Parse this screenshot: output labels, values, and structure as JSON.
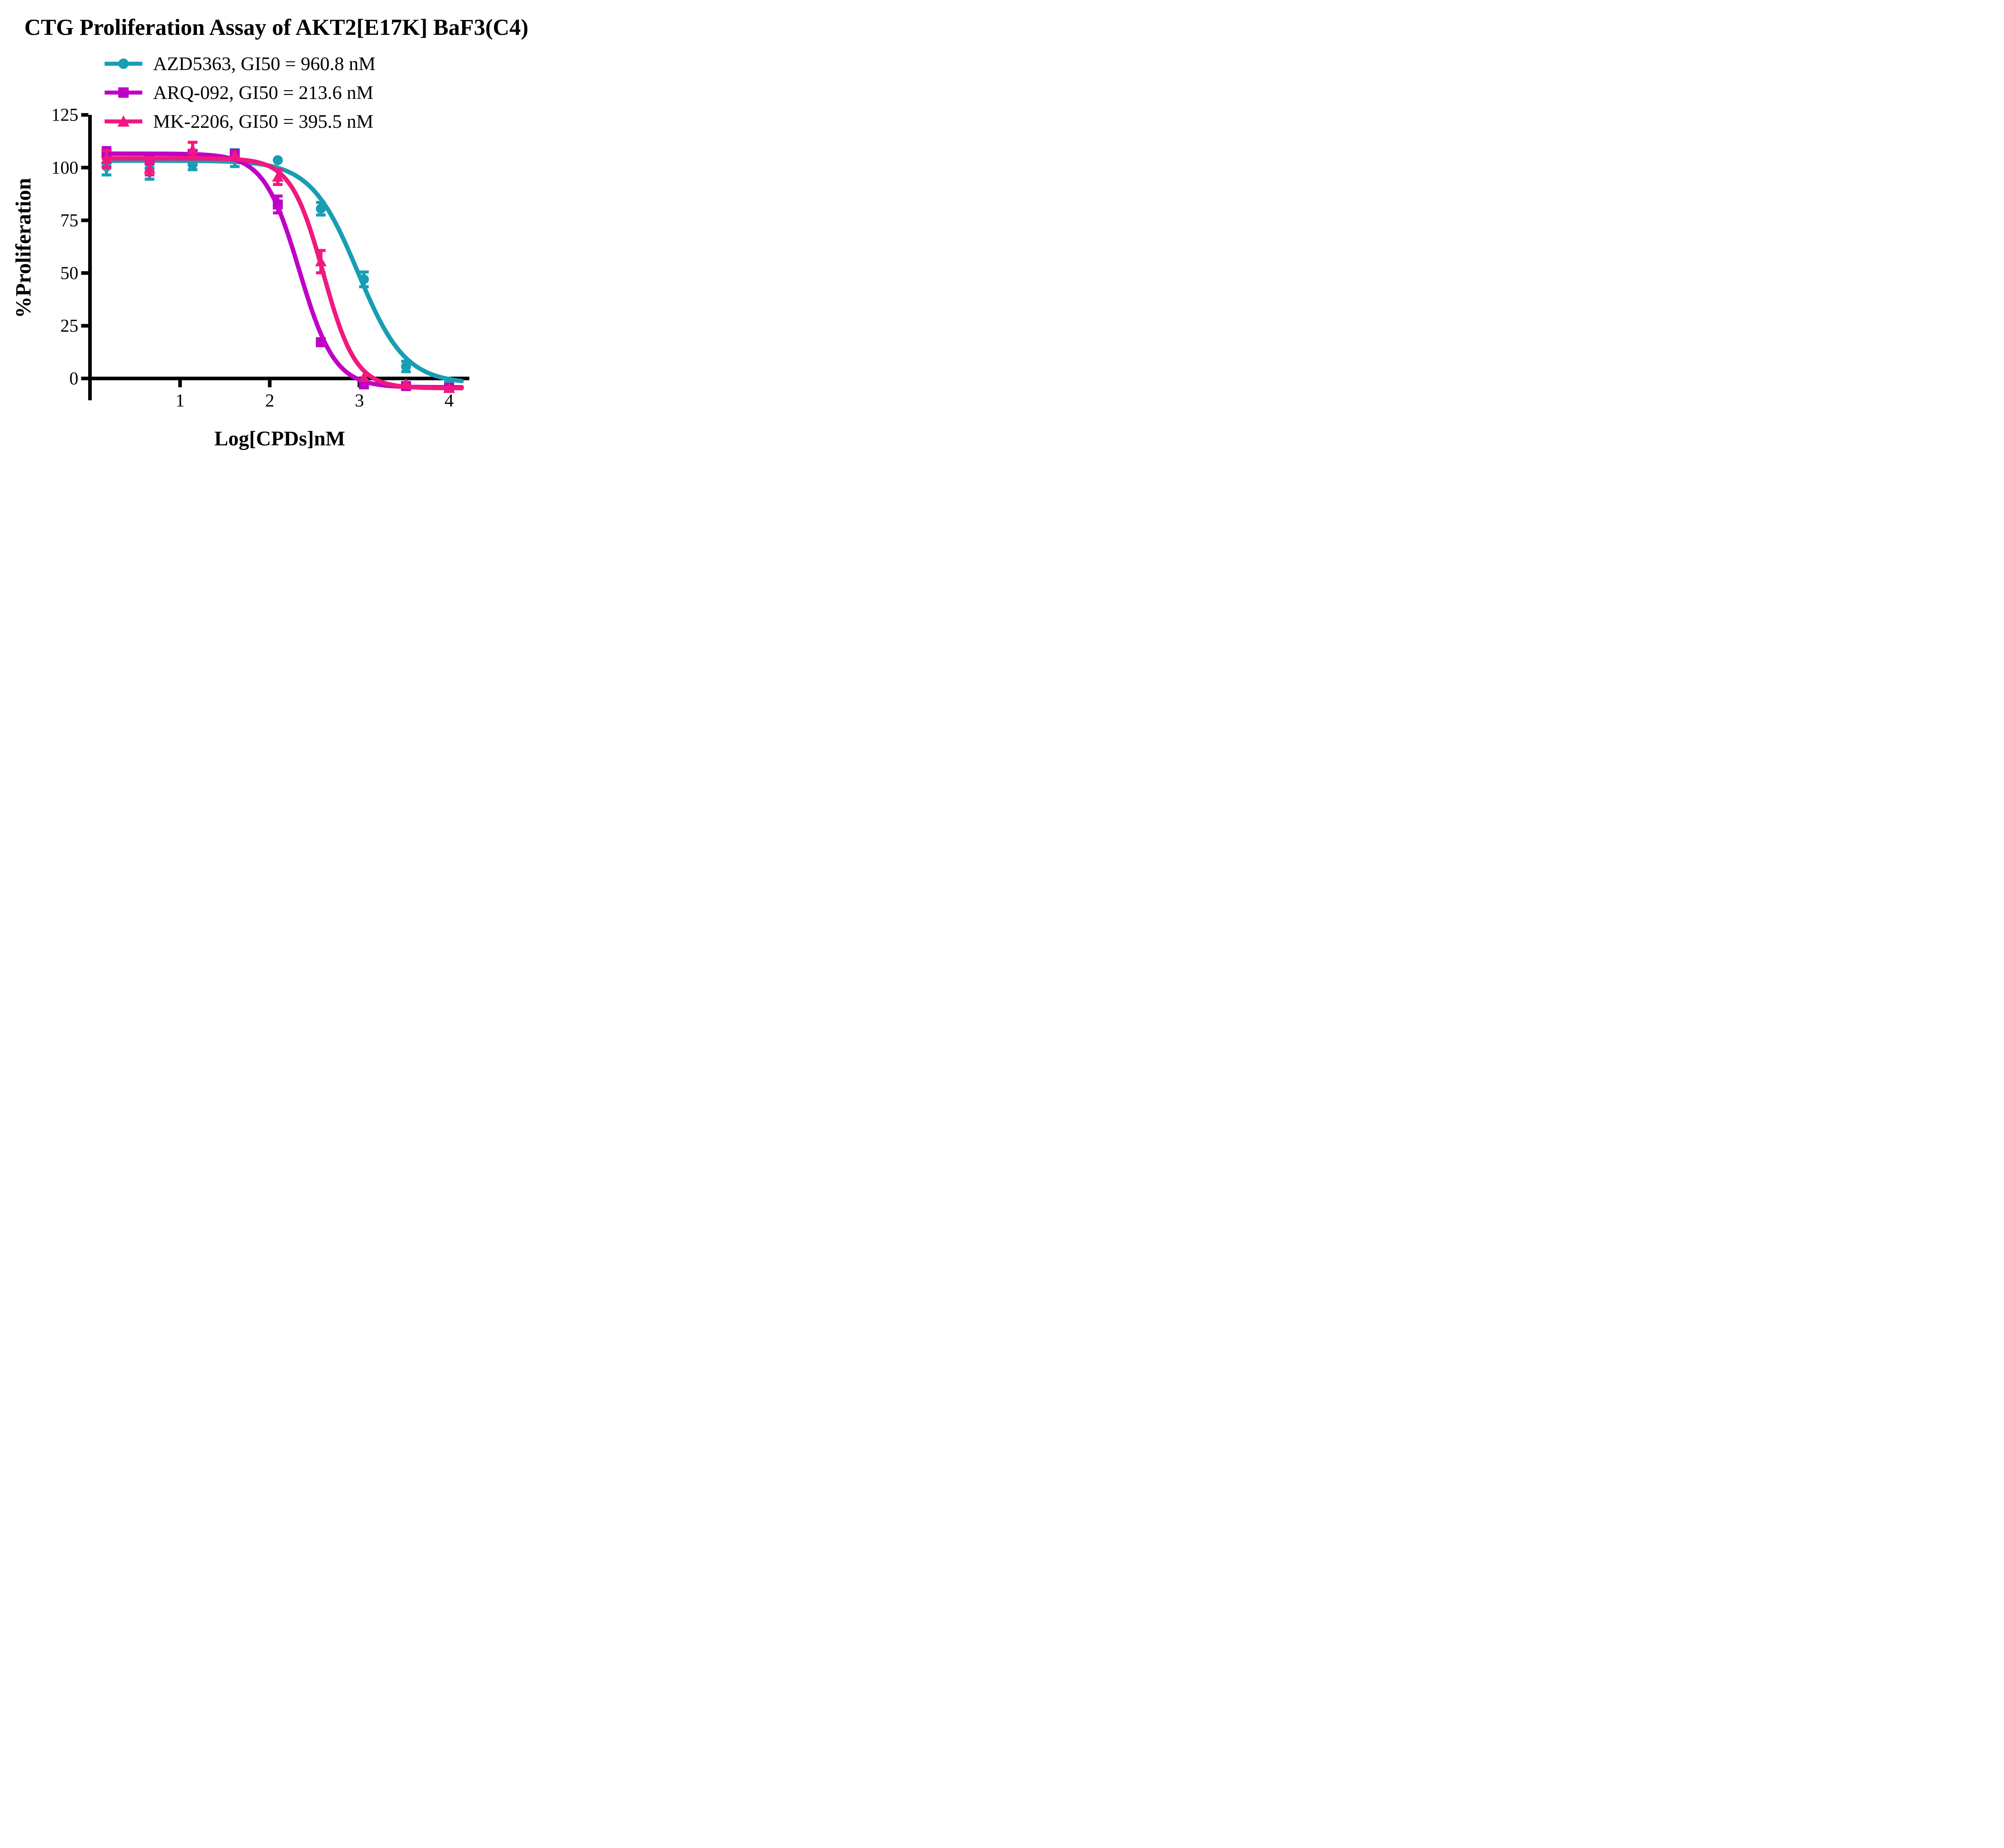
{
  "title": "CTG Proliferation Assay of AKT2[E17K] BaF3(C4)",
  "y_axis": {
    "label": "%Proliferation",
    "ticks": [
      0,
      25,
      50,
      75,
      100,
      125
    ]
  },
  "x_axis": {
    "label": "Log[CPDs]nM",
    "ticks": [
      1,
      2,
      3,
      4
    ]
  },
  "legend": [
    {
      "label": "AZD5363, GI50 = 960.8 nM",
      "color": "#189EB4",
      "marker": "circle"
    },
    {
      "label": "ARQ-092, GI50 = 213.6 nM",
      "color": "#BF00C8",
      "marker": "square"
    },
    {
      "label": "MK-2206, GI50 = 395.5 nM",
      "color": "#F1187F",
      "marker": "triangle"
    }
  ],
  "chart_data": {
    "type": "line",
    "title": "CTG Proliferation Assay of AKT2[E17K] BaF3(C4)",
    "xlabel": "Log[CPDs]nM",
    "ylabel": "%Proliferation",
    "x_axis_ticks": [
      1,
      2,
      3,
      4
    ],
    "y_axis_ticks": [
      0,
      25,
      50,
      75,
      100,
      125
    ],
    "ylim": [
      0,
      125
    ],
    "xlim": [
      0,
      4.2
    ],
    "grid": "off",
    "legend_position": "top-left-above-plot",
    "x": [
      0.18,
      0.66,
      1.14,
      1.61,
      2.09,
      2.57,
      3.05,
      3.52,
      4.0
    ],
    "series": [
      {
        "name": "AZD5363",
        "gi50_label": "GI50 = 960.8 nM",
        "color": "#189EB4",
        "marker": "circle",
        "values": [
          100.5,
          99.5,
          101.5,
          104.5,
          103.5,
          80.5,
          47.0,
          5.7,
          -1.5
        ],
        "errors": [
          4.0,
          5.0,
          2.5,
          4.0,
          0,
          3.0,
          3.5,
          2.5,
          0
        ],
        "fit": {
          "top": 103.3,
          "bottom": -2.5,
          "logGI50": 2.983,
          "hill": 1.65
        }
      },
      {
        "name": "ARQ-092",
        "gi50_label": "GI50 = 213.6 nM",
        "color": "#BF00C8",
        "marker": "square",
        "values": [
          107.0,
          103.5,
          106.5,
          106.5,
          82.5,
          17.2,
          -2.8,
          -3.6,
          -4.4
        ],
        "errors": [
          2.5,
          0,
          0,
          0,
          4.0,
          1.5,
          1.5,
          1.0,
          1.0
        ],
        "fit": {
          "top": 106.6,
          "bottom": -4.2,
          "logGI50": 2.33,
          "hill": 2.2
        }
      },
      {
        "name": "MK-2206",
        "gi50_label": "GI50 = 395.5 nM",
        "color": "#F1187F",
        "marker": "triangle",
        "values": [
          104.0,
          99.5,
          108.5,
          106.0,
          95.5,
          55.4,
          0.5,
          -2.5,
          -4.7
        ],
        "errors": [
          4.0,
          3.0,
          3.5,
          0,
          3.5,
          5.3,
          0,
          0,
          0
        ],
        "fit": {
          "top": 104.4,
          "bottom": -4.6,
          "logGI50": 2.597,
          "hill": 2.4
        }
      }
    ]
  }
}
